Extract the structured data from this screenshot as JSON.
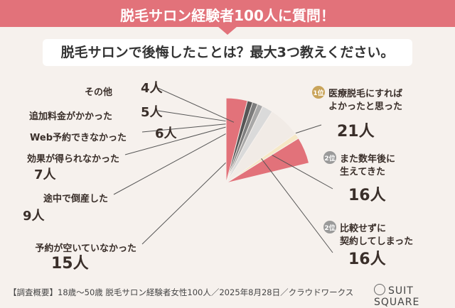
{
  "banner": {
    "title": "脱毛サロン経験者100人に質問！"
  },
  "question": "脱毛サロンで後悔したことは？最大3つ教えください。",
  "footer": {
    "note": "【調査概要】18歳～50歳 脱毛サロン経験者女性100人／2025年8月28日／クラウドワークス",
    "logo": "SUIT SQUARE"
  },
  "chart_data": {
    "type": "pie",
    "unit": "人",
    "slices": [
      {
        "label": "医療脱毛にすればよかったと思った",
        "lines": [
          "医療脱毛にすれば",
          "よかったと思った"
        ],
        "value": 21,
        "value_text": "21人",
        "rank": "1位",
        "color": "#e2727a"
      },
      {
        "label": "また数年後に生えてきた",
        "lines": [
          "また数年後に",
          "生えてきた"
        ],
        "value": 16,
        "value_text": "16人",
        "rank": "2位",
        "color": "#e4a9aa"
      },
      {
        "label": "比較せずに契約してしまった",
        "lines": [
          "比較せずに",
          "契約してしまった"
        ],
        "value": 16,
        "value_text": "16人",
        "rank": "2位",
        "color": "#f6e8c6"
      },
      {
        "label": "予約が空いていなかった",
        "lines": [
          "予約が空いていなかった"
        ],
        "value": 15,
        "value_text": "15人",
        "color": "#f1ebe6"
      },
      {
        "label": "途中で倒産した",
        "lines": [
          "途中で倒産した"
        ],
        "value": 9,
        "value_text": "9人",
        "color": "#dadada"
      },
      {
        "label": "効果が得られなかった",
        "lines": [
          "効果が得られなかった"
        ],
        "value": 7,
        "value_text": "7人",
        "color": "#a8a8a8"
      },
      {
        "label": "Web予約できなかった",
        "lines": [
          "Web予約できなかった"
        ],
        "value": 6,
        "value_text": "6人",
        "color": "#7d7d7d"
      },
      {
        "label": "追加料金がかかった",
        "lines": [
          "追加料金がかかった"
        ],
        "value": 5,
        "value_text": "5人",
        "color": "#565656"
      },
      {
        "label": "その他",
        "lines": [
          "その他"
        ],
        "value": 4,
        "value_text": "4人",
        "color": "#e2727a"
      }
    ]
  }
}
